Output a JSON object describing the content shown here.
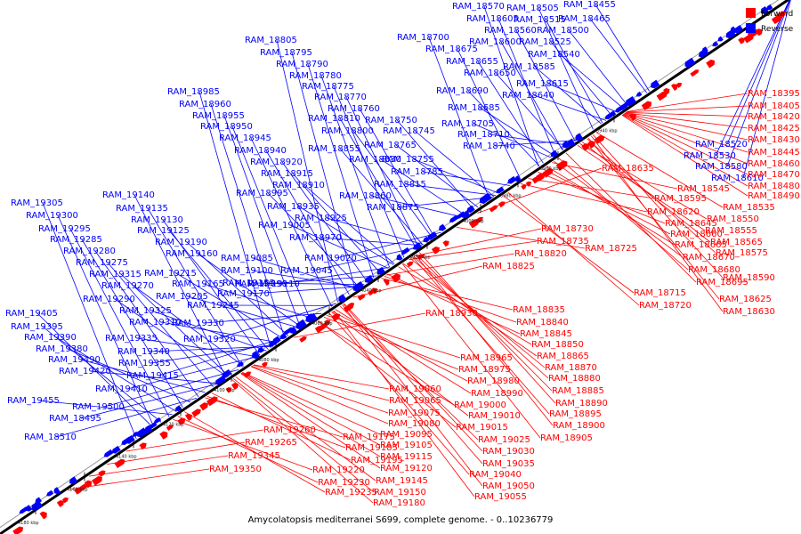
{
  "caption": "Amycolatopsis mediterranei S699, complete genome. - 0..10236779",
  "legend": {
    "forward_label": "Forward",
    "reverse_label": "Reverse",
    "forward_color": "#ff0000",
    "reverse_color": "#0000ff"
  },
  "ticks": [
    "3940 kbp",
    "3960 kbp",
    "3980 kbp",
    "4000 kbp",
    "4020 kbp",
    "4040 kbp",
    "4060 kbp",
    "4080 kbp",
    "4100 kbp",
    "4120 kbp",
    "4140 kbp",
    "4160 kbp",
    "4180 kbp"
  ],
  "reverse_labels": [
    "RAM_18570",
    "RAM_18505",
    "RAM_18455",
    "RAM_18605",
    "RAM_18515",
    "RAM_18465",
    "RAM_18560",
    "RAM_18500",
    "RAM_18600",
    "RAM_18525",
    "RAM_18700",
    "RAM_18540",
    "RAM_18675",
    "RAM_18585",
    "RAM_18655",
    "RAM_18650",
    "RAM_18615",
    "RAM_18690",
    "RAM_18640",
    "RAM_18685",
    "RAM_18705",
    "RAM_18710",
    "RAM_18740",
    "RAM_18805",
    "RAM_18795",
    "RAM_18790",
    "RAM_18780",
    "RAM_18775",
    "RAM_18770",
    "RAM_18760",
    "RAM_18810",
    "RAM_18750",
    "RAM_18800",
    "RAM_18745",
    "RAM_18855",
    "RAM_18765",
    "RAM_18830",
    "RAM_18755",
    "RAM_18785",
    "RAM_18815",
    "RAM_18860",
    "RAM_18875",
    "RAM_18985",
    "RAM_18960",
    "RAM_18955",
    "RAM_18950",
    "RAM_18945",
    "RAM_18940",
    "RAM_18920",
    "RAM_18915",
    "RAM_18910",
    "RAM_18995",
    "RAM_18935",
    "RAM_18925",
    "RAM_19005",
    "RAM_18970",
    "RAM_19020",
    "RAM_19045",
    "RAM_19085",
    "RAM_19090",
    "RAM_19100",
    "RAM_19110",
    "RAM_19170",
    "RAM_19155",
    "RAM_19140",
    "RAM_19135",
    "RAM_19130",
    "RAM_19125",
    "RAM_19190",
    "RAM_19160",
    "RAM_19215",
    "RAM_19165",
    "RAM_19205",
    "RAM_19245",
    "RAM_19330",
    "RAM_19320",
    "RAM_19305",
    "RAM_19300",
    "RAM_19295",
    "RAM_19285",
    "RAM_19280",
    "RAM_19275",
    "RAM_19315",
    "RAM_19270",
    "RAM_19290",
    "RAM_19325",
    "RAM_19310",
    "RAM_19335",
    "RAM_19340",
    "RAM_19355",
    "RAM_19415",
    "RAM_19410",
    "RAM_19405",
    "RAM_19395",
    "RAM_19390",
    "RAM_19380",
    "RAM_19490",
    "RAM_19420",
    "RAM_19455",
    "RAM_19500",
    "RAM_18495",
    "RAM_18510",
    "RAM_18520",
    "RAM_18530",
    "RAM_18580",
    "RAM_18610"
  ],
  "forward_labels": [
    "RAM_18395",
    "RAM_18405",
    "RAM_18420",
    "RAM_18425",
    "RAM_18430",
    "RAM_18445",
    "RAM_18460",
    "RAM_18470",
    "RAM_18480",
    "RAM_18490",
    "RAM_18635",
    "RAM_18545",
    "RAM_18535",
    "RAM_18595",
    "RAM_18620",
    "RAM_18550",
    "RAM_18645",
    "RAM_18555",
    "RAM_18660",
    "RAM_18565",
    "RAM_18665",
    "RAM_18575",
    "RAM_18670",
    "RAM_18680",
    "RAM_18590",
    "RAM_18695",
    "RAM_18625",
    "RAM_18715",
    "RAM_18630",
    "RAM_18720",
    "RAM_18730",
    "RAM_18735",
    "RAM_18725",
    "RAM_18820",
    "RAM_18825",
    "RAM_18930",
    "RAM_18835",
    "RAM_18840",
    "RAM_18845",
    "RAM_18850",
    "RAM_18865",
    "RAM_18870",
    "RAM_18880",
    "RAM_18885",
    "RAM_18890",
    "RAM_18895",
    "RAM_18900",
    "RAM_18905",
    "RAM_18965",
    "RAM_18975",
    "RAM_18980",
    "RAM_18990",
    "RAM_19000",
    "RAM_19010",
    "RAM_19015",
    "RAM_19025",
    "RAM_19030",
    "RAM_19035",
    "RAM_19040",
    "RAM_19050",
    "RAM_19055",
    "RAM_19060",
    "RAM_19065",
    "RAM_19075",
    "RAM_19080",
    "RAM_19095",
    "RAM_19105",
    "RAM_19115",
    "RAM_19120",
    "RAM_19145",
    "RAM_19150",
    "RAM_19180",
    "RAM_19175",
    "RAM_19185",
    "RAM_19195",
    "RAM_19220",
    "RAM_19230",
    "RAM_19235",
    "RAM_19260",
    "RAM_19265",
    "RAM_19345",
    "RAM_19350"
  ]
}
